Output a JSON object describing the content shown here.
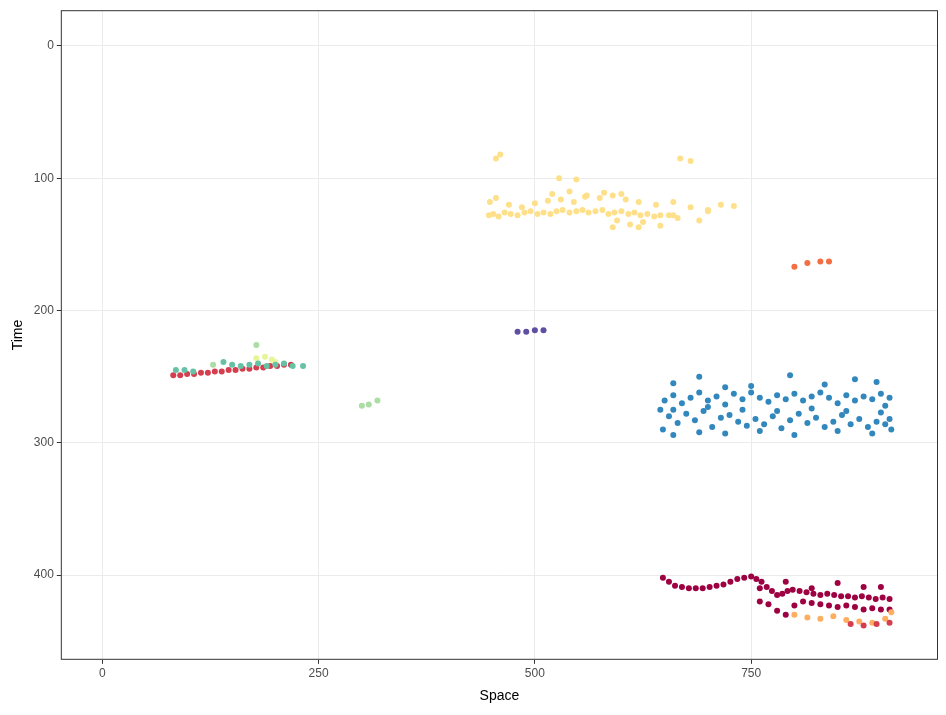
{
  "chart_data": {
    "type": "scatter",
    "x_label": "Space",
    "y_label": "Time",
    "xlim": [
      -48,
      966
    ],
    "xticks": [
      0,
      250,
      500,
      750
    ],
    "ylim": [
      464,
      -27
    ],
    "yticks": [
      0,
      100,
      200,
      300,
      400
    ],
    "grid": true,
    "marker": "circle",
    "series": [
      {
        "color": "#fee08b",
        "points": [
          [
            447,
            128
          ],
          [
            452,
            127
          ],
          [
            458,
            129
          ],
          [
            465,
            126
          ],
          [
            472,
            127
          ],
          [
            480,
            128
          ],
          [
            488,
            126
          ],
          [
            495,
            125
          ],
          [
            503,
            127
          ],
          [
            510,
            126
          ],
          [
            518,
            127
          ],
          [
            525,
            125
          ],
          [
            532,
            124
          ],
          [
            540,
            126
          ],
          [
            548,
            125
          ],
          [
            555,
            124
          ],
          [
            562,
            126
          ],
          [
            570,
            125
          ],
          [
            578,
            124
          ],
          [
            585,
            127
          ],
          [
            592,
            126
          ],
          [
            600,
            125
          ],
          [
            608,
            127
          ],
          [
            615,
            126
          ],
          [
            622,
            128
          ],
          [
            630,
            127
          ],
          [
            638,
            129
          ],
          [
            645,
            128
          ],
          [
            655,
            128
          ],
          [
            665,
            130
          ],
          [
            448,
            118
          ],
          [
            455,
            115
          ],
          [
            470,
            120
          ],
          [
            485,
            122
          ],
          [
            500,
            119
          ],
          [
            515,
            117
          ],
          [
            530,
            116
          ],
          [
            545,
            118
          ],
          [
            558,
            114
          ],
          [
            575,
            115
          ],
          [
            590,
            113
          ],
          [
            605,
            116
          ],
          [
            620,
            118
          ],
          [
            640,
            120
          ],
          [
            660,
            118
          ],
          [
            680,
            122
          ],
          [
            700,
            125
          ],
          [
            715,
            120
          ],
          [
            730,
            121
          ],
          [
            520,
            112
          ],
          [
            540,
            110
          ],
          [
            560,
            113
          ],
          [
            580,
            111
          ],
          [
            600,
            112
          ],
          [
            595,
            132
          ],
          [
            610,
            135
          ],
          [
            625,
            133
          ],
          [
            590,
            137
          ],
          [
            620,
            137
          ],
          [
            645,
            136
          ],
          [
            455,
            85
          ],
          [
            460,
            82
          ],
          [
            528,
            100
          ],
          [
            548,
            101
          ],
          [
            668,
            85
          ],
          [
            680,
            87
          ],
          [
            660,
            128
          ],
          [
            700,
            124
          ],
          [
            690,
            132
          ]
        ]
      },
      {
        "color": "#f46d43",
        "points": [
          [
            800,
            167
          ],
          [
            815,
            164
          ],
          [
            830,
            163
          ],
          [
            840,
            163
          ]
        ]
      },
      {
        "color": "#5e4fa2",
        "points": [
          [
            480,
            216
          ],
          [
            490,
            216
          ],
          [
            500,
            215
          ],
          [
            510,
            215
          ]
        ]
      },
      {
        "color": "#66c2a5",
        "points": [
          [
            85,
            245
          ],
          [
            95,
            245
          ],
          [
            105,
            246
          ],
          [
            140,
            239
          ],
          [
            150,
            241
          ],
          [
            160,
            242
          ],
          [
            170,
            241
          ],
          [
            180,
            240
          ],
          [
            190,
            242
          ],
          [
            200,
            241
          ],
          [
            210,
            240
          ],
          [
            220,
            242
          ],
          [
            232,
            242
          ]
        ]
      },
      {
        "color": "#abdda4",
        "points": [
          [
            300,
            272
          ],
          [
            308,
            271
          ],
          [
            318,
            268
          ],
          [
            128,
            241
          ],
          [
            178,
            226
          ]
        ]
      },
      {
        "color": "#e6f598",
        "points": [
          [
            178,
            236
          ],
          [
            188,
            235
          ],
          [
            196,
            237
          ],
          [
            200,
            239
          ]
        ]
      },
      {
        "color": "#d53e4f",
        "points": [
          [
            82,
            249
          ],
          [
            90,
            249
          ],
          [
            98,
            248
          ],
          [
            106,
            248
          ],
          [
            114,
            247
          ],
          [
            122,
            247
          ],
          [
            130,
            246
          ],
          [
            138,
            246
          ],
          [
            146,
            245
          ],
          [
            154,
            245
          ],
          [
            162,
            244
          ],
          [
            170,
            244
          ],
          [
            178,
            243
          ],
          [
            186,
            243
          ],
          [
            194,
            242
          ],
          [
            202,
            242
          ],
          [
            210,
            241
          ],
          [
            218,
            241
          ],
          [
            865,
            437
          ],
          [
            880,
            438
          ],
          [
            895,
            437
          ],
          [
            910,
            436
          ]
        ]
      },
      {
        "color": "#3288bd",
        "points": [
          [
            645,
            275
          ],
          [
            655,
            280
          ],
          [
            665,
            285
          ],
          [
            675,
            278
          ],
          [
            685,
            283
          ],
          [
            695,
            276
          ],
          [
            705,
            288
          ],
          [
            715,
            281
          ],
          [
            725,
            279
          ],
          [
            735,
            284
          ],
          [
            745,
            287
          ],
          [
            755,
            282
          ],
          [
            765,
            286
          ],
          [
            775,
            280
          ],
          [
            785,
            289
          ],
          [
            795,
            283
          ],
          [
            805,
            278
          ],
          [
            815,
            285
          ],
          [
            825,
            281
          ],
          [
            835,
            288
          ],
          [
            845,
            284
          ],
          [
            855,
            279
          ],
          [
            865,
            286
          ],
          [
            875,
            282
          ],
          [
            885,
            288
          ],
          [
            895,
            284
          ],
          [
            905,
            286
          ],
          [
            912,
            290
          ],
          [
            650,
            268
          ],
          [
            660,
            264
          ],
          [
            670,
            270
          ],
          [
            680,
            266
          ],
          [
            690,
            262
          ],
          [
            700,
            268
          ],
          [
            710,
            265
          ],
          [
            720,
            271
          ],
          [
            730,
            263
          ],
          [
            740,
            267
          ],
          [
            750,
            262
          ],
          [
            760,
            266
          ],
          [
            770,
            269
          ],
          [
            780,
            264
          ],
          [
            790,
            267
          ],
          [
            800,
            263
          ],
          [
            810,
            268
          ],
          [
            820,
            265
          ],
          [
            830,
            262
          ],
          [
            840,
            266
          ],
          [
            850,
            270
          ],
          [
            860,
            264
          ],
          [
            870,
            268
          ],
          [
            880,
            265
          ],
          [
            890,
            267
          ],
          [
            900,
            263
          ],
          [
            910,
            266
          ],
          [
            648,
            290
          ],
          [
            660,
            294
          ],
          [
            690,
            292
          ],
          [
            720,
            293
          ],
          [
            760,
            291
          ],
          [
            800,
            294
          ],
          [
            850,
            291
          ],
          [
            890,
            293
          ],
          [
            910,
            282
          ],
          [
            660,
            255
          ],
          [
            690,
            250
          ],
          [
            720,
            258
          ],
          [
            750,
            257
          ],
          [
            795,
            249
          ],
          [
            835,
            256
          ],
          [
            870,
            252
          ],
          [
            895,
            254
          ],
          [
            905,
            272
          ],
          [
            660,
            275
          ],
          [
            700,
            273
          ],
          [
            740,
            275
          ],
          [
            780,
            276
          ],
          [
            820,
            274
          ],
          [
            860,
            276
          ],
          [
            900,
            277
          ]
        ]
      },
      {
        "color": "#fdae61",
        "points": [
          [
            800,
            430
          ],
          [
            815,
            432
          ],
          [
            830,
            433
          ],
          [
            845,
            431
          ],
          [
            860,
            434
          ],
          [
            875,
            435
          ],
          [
            890,
            436
          ],
          [
            905,
            433
          ],
          [
            912,
            428
          ]
        ]
      },
      {
        "color": "#9e0142",
        "points": [
          [
            648,
            402
          ],
          [
            655,
            405
          ],
          [
            662,
            408
          ],
          [
            670,
            409
          ],
          [
            678,
            410
          ],
          [
            686,
            410
          ],
          [
            694,
            410
          ],
          [
            702,
            409
          ],
          [
            710,
            408
          ],
          [
            718,
            407
          ],
          [
            726,
            405
          ],
          [
            734,
            403
          ],
          [
            742,
            402
          ],
          [
            750,
            401
          ],
          [
            756,
            403
          ],
          [
            762,
            405
          ],
          [
            768,
            409
          ],
          [
            774,
            412
          ],
          [
            780,
            415
          ],
          [
            786,
            414
          ],
          [
            792,
            412
          ],
          [
            798,
            411
          ],
          [
            806,
            412
          ],
          [
            814,
            413
          ],
          [
            822,
            414
          ],
          [
            830,
            415
          ],
          [
            838,
            414
          ],
          [
            846,
            415
          ],
          [
            854,
            416
          ],
          [
            862,
            416
          ],
          [
            870,
            417
          ],
          [
            878,
            416
          ],
          [
            886,
            417
          ],
          [
            894,
            418
          ],
          [
            902,
            417
          ],
          [
            910,
            418
          ],
          [
            760,
            420
          ],
          [
            770,
            422
          ],
          [
            780,
            427
          ],
          [
            790,
            430
          ],
          [
            800,
            423
          ],
          [
            810,
            420
          ],
          [
            820,
            421
          ],
          [
            830,
            422
          ],
          [
            840,
            423
          ],
          [
            850,
            424
          ],
          [
            860,
            423
          ],
          [
            870,
            424
          ],
          [
            880,
            426
          ],
          [
            890,
            425
          ],
          [
            900,
            426
          ],
          [
            910,
            426
          ],
          [
            820,
            410
          ],
          [
            850,
            406
          ],
          [
            880,
            409
          ],
          [
            900,
            409
          ],
          [
            760,
            410
          ],
          [
            790,
            405
          ]
        ]
      }
    ]
  }
}
